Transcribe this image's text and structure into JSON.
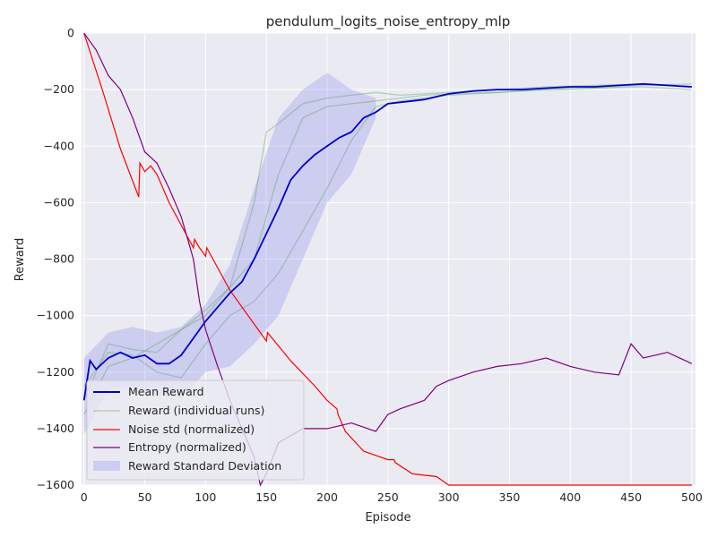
{
  "chart_data": {
    "type": "line",
    "title": "pendulum_logits_noise_entropy_mlp",
    "xlabel": "Episode",
    "ylabel": "Reward",
    "xlim": [
      -2,
      503
    ],
    "ylim": [
      -1600,
      0
    ],
    "xticks": [
      0,
      50,
      100,
      150,
      200,
      250,
      300,
      350,
      400,
      450,
      500
    ],
    "yticks": [
      0,
      -200,
      -400,
      -600,
      -800,
      -1000,
      -1200,
      -1400,
      -1600
    ],
    "xtick_labels": [
      "0",
      "50",
      "100",
      "150",
      "200",
      "250",
      "300",
      "350",
      "400",
      "450",
      "500"
    ],
    "ytick_labels": [
      "0",
      "−200",
      "−400",
      "−600",
      "−800",
      "−1000",
      "−1200",
      "−1400",
      "−1600"
    ],
    "grid": true,
    "legend_position": "lower-left",
    "colors": {
      "background": "#eaeaf2",
      "grid": "#ffffff",
      "mean_reward": "#0000cc",
      "individual_runs": "#4a9a4a",
      "noise_std": "#ff0000",
      "entropy": "#800080",
      "std_band": "#9999ee"
    },
    "series": [
      {
        "name": "Mean Reward",
        "x": [
          0,
          5,
          10,
          20,
          30,
          40,
          50,
          60,
          70,
          80,
          90,
          100,
          110,
          120,
          130,
          140,
          150,
          160,
          170,
          180,
          190,
          200,
          210,
          220,
          230,
          240,
          250,
          260,
          270,
          280,
          290,
          300,
          320,
          340,
          360,
          380,
          400,
          420,
          440,
          460,
          480,
          500
        ],
        "values": [
          -1300,
          -1160,
          -1190,
          -1150,
          -1130,
          -1150,
          -1140,
          -1170,
          -1170,
          -1140,
          -1080,
          -1020,
          -970,
          -920,
          -880,
          -800,
          -710,
          -620,
          -520,
          -470,
          -430,
          -400,
          -370,
          -350,
          -300,
          -280,
          -250,
          -245,
          -240,
          -235,
          -225,
          -215,
          -205,
          -200,
          -200,
          -195,
          -190,
          -190,
          -185,
          -180,
          -185,
          -190
        ]
      },
      {
        "name": "Reward (individual runs)",
        "runs": [
          {
            "x": [
              0,
              20,
              40,
              60,
              80,
              100,
              120,
              140,
              150,
              160,
              180,
              200,
              220,
              240,
              260,
              280,
              300,
              340,
              380,
              420,
              460,
              500
            ],
            "values": [
              -1300,
              -1100,
              -1120,
              -1130,
              -1050,
              -980,
              -900,
              -600,
              -350,
              -320,
              -250,
              -230,
              -220,
              -210,
              -220,
              -215,
              -210,
              -200,
              -190,
              -185,
              -180,
              -190
            ]
          },
          {
            "x": [
              0,
              20,
              40,
              60,
              80,
              100,
              120,
              140,
              160,
              180,
              200,
              220,
              240,
              260,
              280,
              300,
              340,
              380,
              420,
              460,
              500
            ],
            "values": [
              -1250,
              -1130,
              -1140,
              -1200,
              -1220,
              -1100,
              -1000,
              -950,
              -850,
              -700,
              -550,
              -380,
              -260,
              -240,
              -230,
              -220,
              -210,
              -200,
              -195,
              -190,
              -200
            ]
          },
          {
            "x": [
              0,
              20,
              40,
              60,
              80,
              100,
              120,
              140,
              160,
              180,
              200,
              220,
              240,
              260,
              280,
              300,
              340,
              380,
              420,
              460,
              500
            ],
            "values": [
              -1350,
              -1180,
              -1150,
              -1100,
              -1050,
              -1000,
              -900,
              -800,
              -500,
              -300,
              -260,
              -250,
              -240,
              -230,
              -220,
              -215,
              -210,
              -200,
              -195,
              -185,
              -180
            ]
          }
        ]
      },
      {
        "name": "Noise std (normalized)",
        "x": [
          0,
          15,
          30,
          45,
          46,
          50,
          55,
          60,
          70,
          80,
          90,
          91,
          95,
          100,
          101,
          120,
          140,
          150,
          151,
          170,
          190,
          200,
          208,
          209,
          215,
          230,
          250,
          255,
          256,
          270,
          290,
          300,
          310,
          400,
          500
        ],
        "values": [
          0,
          -200,
          -410,
          -580,
          -460,
          -490,
          -470,
          -500,
          -600,
          -680,
          -760,
          -730,
          -760,
          -790,
          -760,
          -910,
          -1030,
          -1090,
          -1060,
          -1160,
          -1250,
          -1300,
          -1330,
          -1350,
          -1410,
          -1480,
          -1510,
          -1510,
          -1520,
          -1560,
          -1570,
          -1600,
          -1600,
          -1600,
          -1600
        ]
      },
      {
        "name": "Entropy (normalized)",
        "x": [
          0,
          10,
          20,
          30,
          40,
          50,
          60,
          70,
          80,
          90,
          95,
          100,
          110,
          120,
          130,
          140,
          145,
          150,
          160,
          180,
          200,
          220,
          240,
          250,
          260,
          280,
          290,
          300,
          320,
          340,
          360,
          380,
          400,
          420,
          440,
          450,
          460,
          480,
          500
        ],
        "values": [
          0,
          -60,
          -150,
          -200,
          -300,
          -420,
          -460,
          -550,
          -650,
          -800,
          -950,
          -1050,
          -1180,
          -1300,
          -1400,
          -1500,
          -1600,
          -1560,
          -1450,
          -1400,
          -1400,
          -1380,
          -1410,
          -1350,
          -1330,
          -1300,
          -1250,
          -1230,
          -1200,
          -1180,
          -1170,
          -1150,
          -1180,
          -1200,
          -1210,
          -1100,
          -1150,
          -1130,
          -1170
        ]
      },
      {
        "name": "Reward Standard Deviation",
        "x": [
          0,
          20,
          40,
          60,
          80,
          100,
          120,
          140,
          160,
          180,
          200,
          220,
          240
        ],
        "upper": [
          -1150,
          -1060,
          -1040,
          -1060,
          -1040,
          -960,
          -820,
          -550,
          -300,
          -200,
          -140,
          -200,
          -230
        ],
        "lower": [
          -1420,
          -1260,
          -1250,
          -1280,
          -1290,
          -1200,
          -1180,
          -1100,
          -1000,
          -800,
          -600,
          -500,
          -300
        ]
      }
    ]
  }
}
